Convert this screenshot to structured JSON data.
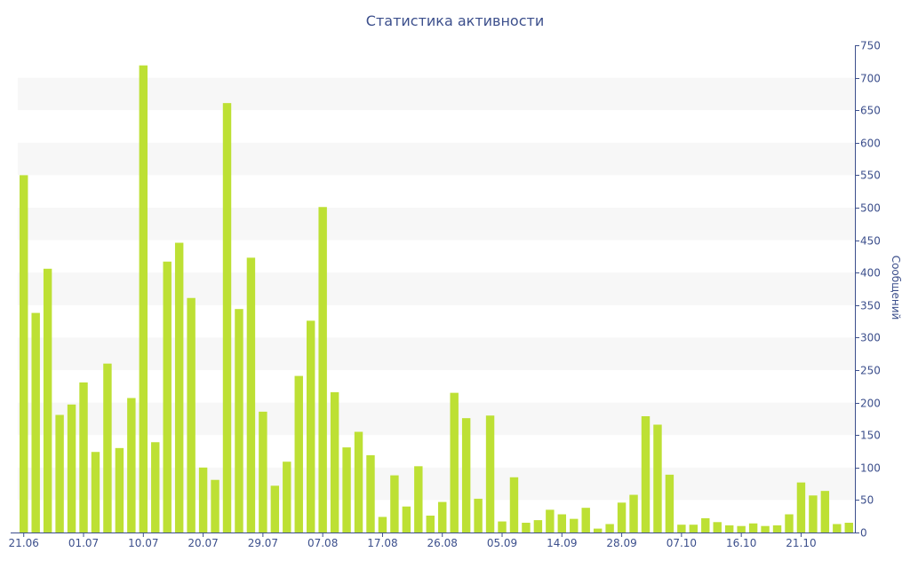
{
  "chart_data": {
    "type": "bar",
    "title": "Статистика активности",
    "ylabel": "Сообщений",
    "xlabel": "",
    "ylim": [
      0,
      750
    ],
    "y_ticks": [
      0,
      50,
      100,
      150,
      200,
      250,
      300,
      350,
      400,
      450,
      500,
      550,
      600,
      650,
      700,
      750
    ],
    "y_axis_side": "right",
    "grid": "horizontal alternating bands",
    "x_tick_labels": [
      {
        "label": "21.06",
        "index": 0
      },
      {
        "label": "01.07",
        "index": 5
      },
      {
        "label": "10.07",
        "index": 10
      },
      {
        "label": "20.07",
        "index": 15
      },
      {
        "label": "29.07",
        "index": 20
      },
      {
        "label": "07.08",
        "index": 25
      },
      {
        "label": "17.08",
        "index": 30
      },
      {
        "label": "26.08",
        "index": 35
      },
      {
        "label": "05.09",
        "index": 40
      },
      {
        "label": "14.09",
        "index": 45
      },
      {
        "label": "28.09",
        "index": 50
      },
      {
        "label": "07.10",
        "index": 55
      },
      {
        "label": "16.10",
        "index": 60
      },
      {
        "label": "21.10",
        "index": 65
      }
    ],
    "values": [
      550,
      338,
      406,
      181,
      197,
      231,
      124,
      260,
      130,
      207,
      719,
      139,
      417,
      446,
      361,
      100,
      81,
      661,
      344,
      423,
      186,
      72,
      109,
      241,
      326,
      501,
      216,
      131,
      155,
      119,
      24,
      88,
      40,
      102,
      26,
      47,
      215,
      176,
      52,
      180,
      17,
      85,
      15,
      19,
      35,
      28,
      21,
      38,
      6,
      13,
      46,
      58,
      179,
      166,
      89,
      12,
      12,
      22,
      16,
      11,
      10,
      14,
      10,
      11,
      28,
      77,
      57,
      64,
      13,
      15
    ],
    "colors": {
      "bar": "#bde034",
      "axis": "#3c4f8c",
      "band": "#f7f7f7"
    }
  }
}
